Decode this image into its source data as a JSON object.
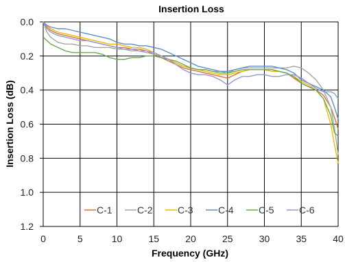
{
  "chart_data": {
    "type": "line",
    "title": "Insertion Loss",
    "xlabel": "Frequency (GHz)",
    "ylabel": "Insertion Loss (dB)",
    "xlim": [
      0,
      40
    ],
    "ylim": [
      0.0,
      1.2
    ],
    "y_inverted": true,
    "x_ticks": [
      "0",
      "5",
      "10",
      "15",
      "20",
      "25",
      "30",
      "35",
      "40"
    ],
    "y_ticks": [
      "0.0",
      "0.2",
      "0.4",
      "0.6",
      "0.8",
      "1.0",
      "1.2"
    ],
    "grid": true,
    "legend_position": "bottom-inside",
    "x": [
      0,
      0.5,
      1,
      2,
      3,
      4,
      5,
      6,
      7,
      8,
      9,
      10,
      11,
      12,
      13,
      14,
      15,
      16,
      17,
      18,
      19,
      20,
      21,
      22,
      23,
      24,
      25,
      26,
      27,
      28,
      29,
      30,
      31,
      32,
      33,
      34,
      35,
      36,
      37,
      38,
      39,
      39.5,
      40
    ],
    "series": [
      {
        "name": "C-1",
        "color": "#d6723a",
        "values": [
          0.0,
          0.03,
          0.05,
          0.07,
          0.08,
          0.09,
          0.1,
          0.11,
          0.12,
          0.13,
          0.14,
          0.15,
          0.15,
          0.16,
          0.16,
          0.17,
          0.19,
          0.21,
          0.23,
          0.25,
          0.27,
          0.28,
          0.29,
          0.3,
          0.31,
          0.32,
          0.33,
          0.31,
          0.29,
          0.28,
          0.28,
          0.28,
          0.28,
          0.29,
          0.3,
          0.33,
          0.36,
          0.38,
          0.4,
          0.43,
          0.5,
          0.56,
          0.63
        ]
      },
      {
        "name": "C-2",
        "color": "#a5a5a5",
        "values": [
          0.0,
          0.06,
          0.09,
          0.12,
          0.13,
          0.13,
          0.14,
          0.14,
          0.15,
          0.15,
          0.15,
          0.16,
          0.16,
          0.17,
          0.17,
          0.18,
          0.19,
          0.2,
          0.22,
          0.24,
          0.26,
          0.27,
          0.28,
          0.28,
          0.29,
          0.29,
          0.3,
          0.28,
          0.27,
          0.27,
          0.27,
          0.27,
          0.27,
          0.27,
          0.27,
          0.26,
          0.27,
          0.3,
          0.34,
          0.4,
          0.5,
          0.62,
          0.78
        ]
      },
      {
        "name": "C-3",
        "color": "#f0b800",
        "values": [
          0.0,
          0.02,
          0.04,
          0.06,
          0.07,
          0.08,
          0.09,
          0.1,
          0.11,
          0.12,
          0.13,
          0.13,
          0.14,
          0.15,
          0.15,
          0.16,
          0.18,
          0.2,
          0.22,
          0.24,
          0.26,
          0.27,
          0.28,
          0.29,
          0.3,
          0.31,
          0.31,
          0.3,
          0.29,
          0.28,
          0.28,
          0.28,
          0.29,
          0.29,
          0.3,
          0.32,
          0.35,
          0.37,
          0.4,
          0.45,
          0.6,
          0.72,
          0.83
        ]
      },
      {
        "name": "C-4",
        "color": "#5b8ec4",
        "values": [
          0.0,
          0.02,
          0.03,
          0.04,
          0.04,
          0.05,
          0.06,
          0.07,
          0.08,
          0.09,
          0.1,
          0.12,
          0.13,
          0.13,
          0.14,
          0.14,
          0.15,
          0.16,
          0.18,
          0.2,
          0.22,
          0.24,
          0.26,
          0.27,
          0.28,
          0.29,
          0.29,
          0.28,
          0.27,
          0.26,
          0.26,
          0.26,
          0.26,
          0.27,
          0.28,
          0.3,
          0.34,
          0.36,
          0.38,
          0.4,
          0.44,
          0.5,
          0.57
        ]
      },
      {
        "name": "C-5",
        "color": "#6aa84f",
        "values": [
          0.09,
          0.11,
          0.13,
          0.15,
          0.17,
          0.18,
          0.18,
          0.18,
          0.18,
          0.19,
          0.21,
          0.22,
          0.22,
          0.21,
          0.21,
          0.2,
          0.2,
          0.21,
          0.22,
          0.23,
          0.25,
          0.27,
          0.28,
          0.28,
          0.29,
          0.3,
          0.3,
          0.29,
          0.28,
          0.28,
          0.28,
          0.28,
          0.28,
          0.29,
          0.3,
          0.32,
          0.36,
          0.38,
          0.4,
          0.45,
          0.55,
          0.65,
          0.67
        ]
      },
      {
        "name": "C-6",
        "color": "#8f9ad6",
        "values": [
          0.0,
          0.04,
          0.06,
          0.08,
          0.09,
          0.1,
          0.11,
          0.11,
          0.12,
          0.13,
          0.14,
          0.15,
          0.16,
          0.16,
          0.17,
          0.17,
          0.18,
          0.2,
          0.22,
          0.25,
          0.28,
          0.3,
          0.31,
          0.31,
          0.32,
          0.34,
          0.37,
          0.34,
          0.32,
          0.32,
          0.31,
          0.31,
          0.32,
          0.32,
          0.31,
          0.31,
          0.33,
          0.36,
          0.39,
          0.41,
          0.41,
          0.42,
          0.45
        ]
      }
    ]
  }
}
